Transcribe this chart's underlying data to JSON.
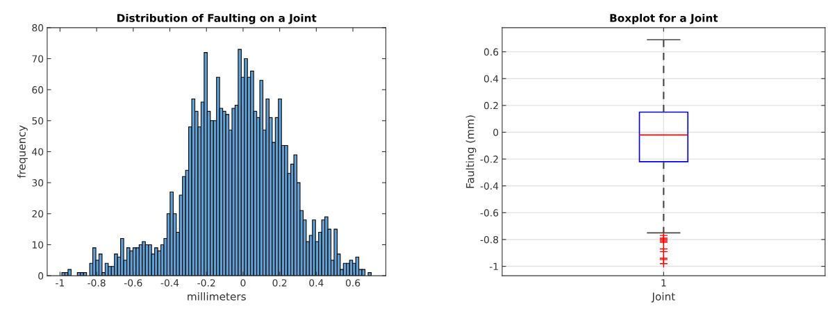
{
  "chart_data": [
    {
      "type": "histogram",
      "title": "Distribution of Faulting on a Joint",
      "xlabel": "millimeters",
      "ylabel": "frequency",
      "color": "#5fa2d6",
      "bins": [
        -0.99,
        -0.9731,
        -0.9562,
        -0.9393,
        -0.9224,
        -0.9055,
        -0.8886,
        -0.8717,
        -0.8548,
        -0.8379,
        -0.821,
        -0.8041,
        -0.7872,
        -0.7703,
        -0.7534,
        -0.7365,
        -0.7196,
        -0.7027,
        -0.6858,
        -0.6689,
        -0.652,
        -0.6351,
        -0.6182,
        -0.6013,
        -0.5844,
        -0.5675,
        -0.5506,
        -0.5337,
        -0.5168,
        -0.4999,
        -0.483,
        -0.4661,
        -0.4492,
        -0.4323,
        -0.4154,
        -0.3985,
        -0.3816,
        -0.3647,
        -0.3478,
        -0.3309,
        -0.314,
        -0.2971,
        -0.2802,
        -0.2633,
        -0.2464,
        -0.2295,
        -0.2126,
        -0.1957,
        -0.1788,
        -0.1619,
        -0.145,
        -0.1281,
        -0.1112,
        -0.0943,
        -0.0774,
        -0.0605,
        -0.0436,
        -0.0267,
        -0.0098,
        0.0071,
        0.024,
        0.0409,
        0.0578,
        0.0747,
        0.0916,
        0.1085,
        0.1254,
        0.1423,
        0.1592,
        0.1761,
        0.193,
        0.2099,
        0.2268,
        0.2437,
        0.2606,
        0.2775,
        0.2944,
        0.3113,
        0.3282,
        0.3451,
        0.362,
        0.3789,
        0.3958,
        0.4127,
        0.4296,
        0.4465,
        0.4634,
        0.4803,
        0.4972,
        0.5141,
        0.531,
        0.5479,
        0.5648,
        0.5817,
        0.5986,
        0.6155,
        0.6324,
        0.6493,
        0.6662,
        0.6831,
        0.7
      ],
      "values": [
        1,
        1,
        2,
        0,
        0,
        1,
        1,
        1,
        0,
        4,
        9,
        5,
        7,
        1,
        4,
        3,
        3,
        7,
        6,
        12,
        5,
        9,
        8,
        9,
        9,
        10,
        11,
        10,
        10,
        7,
        9,
        8,
        10,
        12,
        20,
        27,
        20,
        14,
        26,
        32,
        34,
        48,
        57,
        53,
        48,
        56,
        72,
        53,
        50,
        50,
        64,
        54,
        53,
        52,
        47,
        54,
        55,
        73,
        64,
        70,
        64,
        66,
        53,
        51,
        63,
        47,
        57,
        51,
        43,
        51,
        57,
        42,
        42,
        33,
        36,
        39,
        30,
        21,
        18,
        11,
        13,
        18,
        11,
        14,
        18,
        19,
        15,
        5,
        15,
        7,
        2,
        4,
        4,
        5,
        4,
        6,
        2,
        2,
        0,
        1
      ],
      "xlim": [
        -1.07,
        0.78
      ],
      "xticks": [
        -1,
        -0.8,
        -0.6,
        -0.4,
        -0.2,
        0,
        0.2,
        0.4,
        0.6
      ],
      "ylim": [
        0,
        80
      ],
      "yticks": [
        0,
        10,
        20,
        30,
        40,
        50,
        60,
        70,
        80
      ]
    },
    {
      "type": "box",
      "title": "Boxplot for a Joint",
      "xlabel": "Joint",
      "ylabel": "Faulting (mm)",
      "categories": [
        "1"
      ],
      "color": "#0000ff",
      "boxes": [
        {
          "low": -0.75,
          "q1": -0.22,
          "median": -0.02,
          "q3": 0.15,
          "high": 0.69,
          "outliers": [
            -0.77,
            -0.79,
            -0.8,
            -0.81,
            -0.82,
            -0.87,
            -0.89,
            -0.94,
            -0.95,
            -0.98
          ]
        }
      ],
      "ylim": [
        -1.07,
        0.78
      ],
      "yticks": [
        -1,
        -0.8,
        -0.6,
        -0.4,
        -0.2,
        0,
        0.2,
        0.4,
        0.6
      ],
      "grid": true
    }
  ]
}
